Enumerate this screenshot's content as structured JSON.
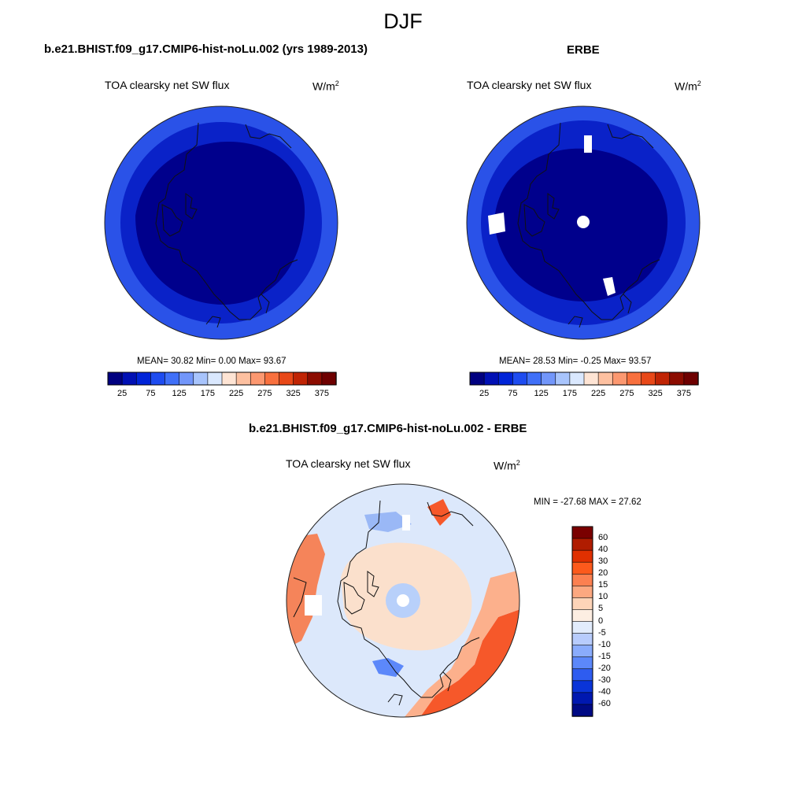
{
  "figure": {
    "season": "DJF",
    "panels": [
      {
        "id": "model",
        "title": "b.e21.BHIST.f09_g17.CMIP6-hist-noLu.002 (yrs 1989-2013)",
        "variable": "TOA clearsky net SW flux",
        "units": "W/m",
        "units_sup": "2",
        "stats": "MEAN=  30.82  Min=   0.00  Max=  93.67"
      },
      {
        "id": "obs",
        "title": "ERBE",
        "variable": "TOA clearsky net SW flux",
        "units": "W/m",
        "units_sup": "2",
        "stats": "MEAN=  28.53  Min=  -0.25  Max=  93.57"
      },
      {
        "id": "diff",
        "title": "b.e21.BHIST.f09_g17.CMIP6-hist-noLu.002 - ERBE",
        "variable": "TOA clearsky net SW flux",
        "units": "W/m",
        "units_sup": "2",
        "stats": "MIN = -27.68 MAX =  27.62"
      }
    ],
    "abs_colorbar": {
      "tick_labels": [
        "25",
        "75",
        "125",
        "175",
        "225",
        "275",
        "325",
        "375"
      ],
      "colors": [
        "#000080",
        "#0010b4",
        "#0024d8",
        "#1e4cf0",
        "#4070f8",
        "#7296fa",
        "#a8c4fc",
        "#dae8fe",
        "#fee4d4",
        "#fdc0a0",
        "#fc9870",
        "#f8703e",
        "#e84818",
        "#c02404",
        "#8c0c00",
        "#6e0000"
      ]
    },
    "diff_colorbar": {
      "tick_labels": [
        "60",
        "40",
        "30",
        "20",
        "15",
        "10",
        "5",
        "0",
        "-5",
        "-10",
        "-15",
        "-20",
        "-30",
        "-40",
        "-60"
      ],
      "colors": [
        "#7a0000",
        "#b01c00",
        "#e03000",
        "#fc5a1c",
        "#fc8050",
        "#fca880",
        "#fdd4b8",
        "#fdeee2",
        "#e2ecfc",
        "#b8ccfc",
        "#8aacfc",
        "#5c88fa",
        "#2e5cf0",
        "#0a34d8",
        "#0018b0",
        "#000a84"
      ]
    },
    "colors": {
      "map_deep": "#00008c",
      "map_mid": "#0a22c8",
      "map_outer": "#2a52e8",
      "coastline": "#111111",
      "diff_neutral": "#dce8fb",
      "diff_warm": "#fbe0cc",
      "diff_hot": "#f6582a",
      "diff_cool": "#9ab8f6"
    }
  }
}
